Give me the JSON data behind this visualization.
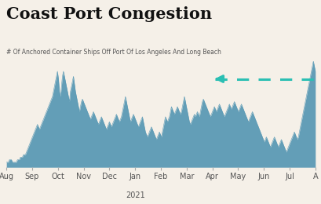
{
  "title_display": "Coast Port Congestion",
  "subtitle": "# Of Anchored Container Ships Off Port Of Los Angeles And Long Beach",
  "background_color": "#f5f0e8",
  "fill_color": "#5b9ab5",
  "arrow_color": "#2bbfb3",
  "x_tick_labels": [
    "Aug",
    "Sep",
    "Oct",
    "Nov",
    "Dec",
    "Jan",
    "Feb",
    "Mar",
    "Apr",
    "May",
    "Jun",
    "Jul",
    "A"
  ],
  "year_label": "2021",
  "ylim": [
    0,
    42
  ],
  "values": [
    2,
    2,
    2,
    3,
    3,
    3,
    2,
    2,
    2,
    2,
    2,
    3,
    3,
    3,
    4,
    4,
    4,
    5,
    5,
    5,
    6,
    7,
    8,
    9,
    10,
    11,
    12,
    13,
    14,
    15,
    16,
    17,
    16,
    15,
    16,
    17,
    18,
    19,
    20,
    21,
    22,
    23,
    24,
    25,
    26,
    27,
    28,
    30,
    32,
    34,
    36,
    38,
    35,
    30,
    28,
    32,
    36,
    38,
    36,
    34,
    32,
    30,
    28,
    26,
    30,
    32,
    34,
    36,
    33,
    30,
    28,
    26,
    24,
    22,
    24,
    26,
    27,
    26,
    25,
    24,
    23,
    22,
    21,
    20,
    19,
    20,
    21,
    22,
    21,
    20,
    19,
    18,
    17,
    18,
    19,
    20,
    19,
    18,
    17,
    16,
    15,
    16,
    17,
    18,
    17,
    16,
    17,
    18,
    19,
    20,
    21,
    20,
    19,
    18,
    19,
    20,
    22,
    24,
    26,
    28,
    26,
    24,
    22,
    20,
    18,
    19,
    20,
    21,
    20,
    19,
    18,
    17,
    16,
    17,
    18,
    19,
    20,
    18,
    16,
    14,
    13,
    12,
    13,
    14,
    15,
    16,
    15,
    14,
    13,
    12,
    11,
    12,
    13,
    14,
    13,
    12,
    14,
    16,
    18,
    20,
    19,
    18,
    19,
    20,
    22,
    24,
    23,
    22,
    21,
    22,
    23,
    24,
    23,
    22,
    21,
    22,
    24,
    26,
    28,
    26,
    24,
    22,
    20,
    18,
    17,
    18,
    19,
    20,
    21,
    20,
    21,
    22,
    21,
    20,
    22,
    24,
    26,
    27,
    26,
    25,
    24,
    23,
    22,
    21,
    20,
    21,
    22,
    23,
    24,
    23,
    22,
    23,
    24,
    25,
    24,
    23,
    22,
    21,
    20,
    21,
    22,
    23,
    24,
    25,
    24,
    23,
    24,
    25,
    26,
    25,
    24,
    23,
    22,
    23,
    24,
    25,
    24,
    23,
    22,
    21,
    20,
    19,
    18,
    19,
    20,
    21,
    22,
    21,
    20,
    19,
    18,
    17,
    16,
    15,
    14,
    13,
    12,
    11,
    10,
    11,
    12,
    11,
    10,
    9,
    8,
    9,
    10,
    11,
    12,
    11,
    10,
    9,
    8,
    9,
    10,
    11,
    10,
    9,
    8,
    7,
    6,
    7,
    8,
    9,
    10,
    11,
    12,
    13,
    14,
    13,
    12,
    11,
    12,
    14,
    16,
    18,
    20,
    22,
    24,
    26,
    28,
    30,
    32,
    34,
    36,
    38,
    40,
    42,
    40,
    38
  ]
}
